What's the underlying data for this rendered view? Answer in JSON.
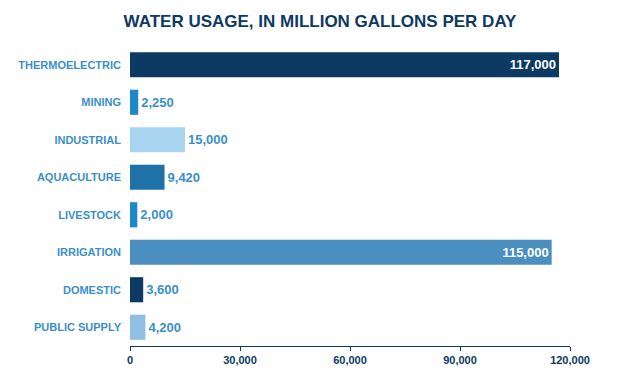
{
  "chart_data": {
    "type": "bar",
    "title": "WATER USAGE, IN MILLION GALLONS PER DAY",
    "orientation": "horizontal",
    "categories": [
      "THERMOELECTRIC",
      "MINING",
      "INDUSTRIAL",
      "AQUACULTURE",
      "LIVESTOCK",
      "IRRIGATION",
      "DOMESTIC",
      "PUBLIC SUPPLY"
    ],
    "values": [
      117000,
      2250,
      15000,
      9420,
      2000,
      115000,
      3600,
      4200
    ],
    "value_labels": [
      "117,000",
      "2,250",
      "15,000",
      "9,420",
      "2,000",
      "115,000",
      "3,600",
      "4,200"
    ],
    "colors": [
      "#0d3a63",
      "#1e88c8",
      "#a8d4f0",
      "#1f72a8",
      "#1e88c8",
      "#4a8fbf",
      "#0d3a63",
      "#8fc0e3"
    ],
    "xlim": [
      0,
      120000
    ],
    "xticks": [
      0,
      {
        "value": 30000,
        "label": "30,000"
      },
      {
        "value": 60000,
        "label": "60,000"
      },
      {
        "value": 90000,
        "label": "90,000"
      },
      {
        "value": 120000,
        "label": "120,000"
      }
    ],
    "data_labels": true,
    "grid": false
  }
}
